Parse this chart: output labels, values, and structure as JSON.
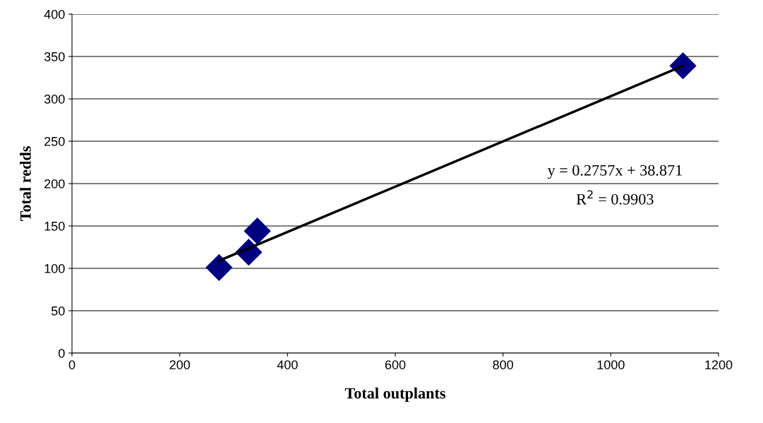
{
  "chart_data": {
    "type": "scatter",
    "xlabel": "Total outplants",
    "ylabel": "Total redds",
    "xlim": [
      0,
      1200
    ],
    "xticks": [
      0,
      200,
      400,
      600,
      800,
      1000,
      1200
    ],
    "ylim": [
      0,
      400
    ],
    "yticks": [
      0,
      50,
      100,
      150,
      200,
      250,
      300,
      350,
      400
    ],
    "grid": "y",
    "marker": "diamond",
    "series": [
      {
        "color": "#000080",
        "x": [
          273,
          328,
          344,
          1134
        ],
        "values": [
          101,
          119,
          144,
          339
        ]
      },
      {
        "type": "line",
        "color": "#000000",
        "x": [
          273,
          1134
        ],
        "values": [
          109,
          339
        ],
        "marker": "none",
        "line_style": "solid"
      }
    ],
    "annotations": [
      "y = 0.2757x + 38.871",
      "R$^{2}$ = 0.9903"
    ]
  }
}
